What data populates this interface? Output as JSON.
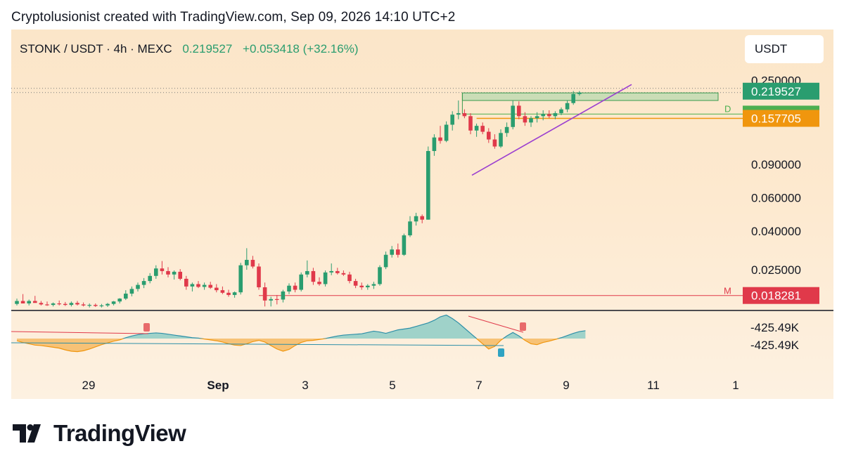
{
  "header": {
    "attribution": "Cryptolusionist created with TradingView.com, Sep 09, 2026 14:10 UTC+2"
  },
  "symbol": {
    "title": "STONK / USDT · 4h · MEXC",
    "price": "0.219527",
    "change": "+0.053418 (+32.16%)",
    "currency": "USDT"
  },
  "colors": {
    "up": "#2a9d6f",
    "down": "#e0394a",
    "accent_orange": "#f0960e",
    "trend_purple": "#9b3fd0",
    "osc_fill": "#7fc8c3"
  },
  "chart_data": {
    "type": "candlestick",
    "y_scale": "log",
    "ylim": [
      0.0155,
      0.26
    ],
    "y_ticks": [
      "0.250000",
      "0.090000",
      "0.060000",
      "0.040000",
      "0.025000"
    ],
    "x_ticks": [
      "29",
      "Sep",
      "3",
      "5",
      "7",
      "9",
      "11",
      "1"
    ],
    "price_tags": [
      {
        "label": "0.219527",
        "value": 0.219527,
        "color": "#2a9d6f"
      },
      {
        "label": "0.166109",
        "value": 0.166109,
        "color": "#4caf50"
      },
      {
        "label": "0.157705",
        "value": 0.157705,
        "color": "#f0960e"
      },
      {
        "label": "0.018281",
        "value": 0.018281,
        "color": "#e0394a"
      }
    ],
    "levels": [
      {
        "label": "D",
        "value": 0.166109
      },
      {
        "label": "M",
        "value": 0.018281
      }
    ],
    "candles": [
      [
        0.0165,
        0.0176,
        0.0162,
        0.0171
      ],
      [
        0.0171,
        0.0186,
        0.0166,
        0.0166
      ],
      [
        0.0166,
        0.0174,
        0.0162,
        0.0171
      ],
      [
        0.0171,
        0.0182,
        0.0168,
        0.0167
      ],
      [
        0.0167,
        0.0171,
        0.0162,
        0.0164
      ],
      [
        0.0164,
        0.017,
        0.0161,
        0.0163
      ],
      [
        0.0163,
        0.0168,
        0.016,
        0.0166
      ],
      [
        0.0166,
        0.0172,
        0.0162,
        0.0165
      ],
      [
        0.0165,
        0.0169,
        0.0161,
        0.0163
      ],
      [
        0.0163,
        0.017,
        0.016,
        0.0167
      ],
      [
        0.0167,
        0.0171,
        0.0162,
        0.0164
      ],
      [
        0.0164,
        0.0168,
        0.016,
        0.0162
      ],
      [
        0.0162,
        0.0166,
        0.0158,
        0.0163
      ],
      [
        0.0163,
        0.0166,
        0.0159,
        0.0161
      ],
      [
        0.0161,
        0.0165,
        0.0158,
        0.0162
      ],
      [
        0.0162,
        0.0167,
        0.0159,
        0.0165
      ],
      [
        0.0165,
        0.0171,
        0.0162,
        0.017
      ],
      [
        0.017,
        0.0177,
        0.0166,
        0.0176
      ],
      [
        0.0176,
        0.0195,
        0.0173,
        0.0187
      ],
      [
        0.0187,
        0.0204,
        0.0181,
        0.0198
      ],
      [
        0.0198,
        0.0214,
        0.0192,
        0.0208
      ],
      [
        0.0208,
        0.0226,
        0.02,
        0.0218
      ],
      [
        0.0218,
        0.024,
        0.0212,
        0.0232
      ],
      [
        0.0232,
        0.0264,
        0.0224,
        0.0254
      ],
      [
        0.0254,
        0.0278,
        0.0236,
        0.0246
      ],
      [
        0.0246,
        0.0258,
        0.0228,
        0.0236
      ],
      [
        0.0236,
        0.0248,
        0.0222,
        0.0244
      ],
      [
        0.0244,
        0.0252,
        0.022,
        0.0224
      ],
      [
        0.0224,
        0.0232,
        0.0196,
        0.0204
      ],
      [
        0.0204,
        0.0214,
        0.0192,
        0.021
      ],
      [
        0.021,
        0.0218,
        0.02,
        0.0203
      ],
      [
        0.0203,
        0.0214,
        0.0196,
        0.0208
      ],
      [
        0.0208,
        0.0216,
        0.0198,
        0.0201
      ],
      [
        0.0201,
        0.021,
        0.019,
        0.0195
      ],
      [
        0.0195,
        0.0204,
        0.0186,
        0.0189
      ],
      [
        0.0189,
        0.0196,
        0.018,
        0.0184
      ],
      [
        0.0184,
        0.0192,
        0.0178,
        0.019
      ],
      [
        0.019,
        0.0272,
        0.0185,
        0.0264
      ],
      [
        0.0264,
        0.0325,
        0.025,
        0.0282
      ],
      [
        0.0282,
        0.0296,
        0.0254,
        0.026
      ],
      [
        0.026,
        0.027,
        0.0196,
        0.0202
      ],
      [
        0.0202,
        0.0214,
        0.016,
        0.0172
      ],
      [
        0.0172,
        0.018,
        0.016,
        0.0175
      ],
      [
        0.0175,
        0.0184,
        0.0164,
        0.0174
      ],
      [
        0.0174,
        0.0196,
        0.0168,
        0.0192
      ],
      [
        0.0192,
        0.0212,
        0.0186,
        0.0206
      ],
      [
        0.0206,
        0.0214,
        0.019,
        0.0196
      ],
      [
        0.0196,
        0.0242,
        0.0192,
        0.0236
      ],
      [
        0.0236,
        0.028,
        0.0228,
        0.0246
      ],
      [
        0.0246,
        0.0256,
        0.0208,
        0.0216
      ],
      [
        0.0216,
        0.0228,
        0.0206,
        0.021
      ],
      [
        0.021,
        0.0248,
        0.0204,
        0.0242
      ],
      [
        0.0242,
        0.027,
        0.0234,
        0.0246
      ],
      [
        0.0246,
        0.0256,
        0.0236,
        0.024
      ],
      [
        0.024,
        0.0248,
        0.0232,
        0.0236
      ],
      [
        0.0236,
        0.0244,
        0.0212,
        0.0218
      ],
      [
        0.0218,
        0.0224,
        0.02,
        0.0206
      ],
      [
        0.0206,
        0.0214,
        0.0196,
        0.0202
      ],
      [
        0.0202,
        0.021,
        0.0196,
        0.0206
      ],
      [
        0.0206,
        0.0216,
        0.0198,
        0.021
      ],
      [
        0.021,
        0.0264,
        0.0206,
        0.0258
      ],
      [
        0.0258,
        0.0312,
        0.0252,
        0.03
      ],
      [
        0.03,
        0.0334,
        0.029,
        0.032
      ],
      [
        0.032,
        0.0344,
        0.029,
        0.03
      ],
      [
        0.03,
        0.0388,
        0.0296,
        0.038
      ],
      [
        0.038,
        0.048,
        0.0372,
        0.045
      ],
      [
        0.045,
        0.05,
        0.0428,
        0.048
      ],
      [
        0.048,
        0.049,
        0.044,
        0.046
      ],
      [
        0.046,
        0.112,
        0.046,
        0.106
      ],
      [
        0.106,
        0.13,
        0.1,
        0.125
      ],
      [
        0.125,
        0.144,
        0.116,
        0.12
      ],
      [
        0.12,
        0.152,
        0.118,
        0.146
      ],
      [
        0.146,
        0.172,
        0.136,
        0.165
      ],
      [
        0.165,
        0.196,
        0.156,
        0.168
      ],
      [
        0.168,
        0.176,
        0.158,
        0.162
      ],
      [
        0.162,
        0.168,
        0.13,
        0.136
      ],
      [
        0.136,
        0.148,
        0.126,
        0.144
      ],
      [
        0.144,
        0.15,
        0.13,
        0.134
      ],
      [
        0.134,
        0.14,
        0.117,
        0.122
      ],
      [
        0.122,
        0.13,
        0.109,
        0.112
      ],
      [
        0.112,
        0.138,
        0.11,
        0.132
      ],
      [
        0.132,
        0.15,
        0.126,
        0.142
      ],
      [
        0.142,
        0.196,
        0.138,
        0.184
      ],
      [
        0.184,
        0.194,
        0.156,
        0.162
      ],
      [
        0.162,
        0.17,
        0.144,
        0.15
      ],
      [
        0.15,
        0.162,
        0.142,
        0.158
      ],
      [
        0.158,
        0.17,
        0.15,
        0.162
      ],
      [
        0.162,
        0.174,
        0.154,
        0.166
      ],
      [
        0.166,
        0.174,
        0.158,
        0.162
      ],
      [
        0.162,
        0.172,
        0.156,
        0.168
      ],
      [
        0.168,
        0.18,
        0.164,
        0.176
      ],
      [
        0.176,
        0.196,
        0.17,
        0.19
      ],
      [
        0.19,
        0.22,
        0.186,
        0.212
      ],
      [
        0.212,
        0.22,
        0.208,
        0.216
      ]
    ],
    "oscillator": {
      "labels": [
        "-425.49K",
        "-425.49K"
      ],
      "values": [
        -0.5,
        -0.9,
        -1.2,
        -1.5,
        -1.6,
        -1.8,
        -2.0,
        -2.2,
        -2.6,
        -2.9,
        -3.0,
        -2.8,
        -2.4,
        -1.9,
        -1.4,
        -1.0,
        -0.6,
        -0.3,
        0.2,
        0.6,
        0.9,
        1.1,
        1.2,
        1.3,
        1.2,
        1.0,
        0.8,
        0.6,
        0.4,
        0.2,
        0.1,
        -0.1,
        -0.3,
        -0.5,
        -0.8,
        -1.2,
        -1.5,
        -1.6,
        -1.2,
        -0.7,
        -0.4,
        -0.8,
        -1.6,
        -2.4,
        -2.9,
        -2.5,
        -1.6,
        -0.9,
        -0.5,
        -0.4,
        -0.2,
        0.0,
        0.3,
        0.6,
        0.8,
        0.9,
        1.0,
        1.1,
        1.4,
        1.7,
        1.5,
        1.2,
        1.6,
        2.0,
        2.2,
        2.4,
        2.8,
        3.2,
        3.6,
        4.2,
        5.0,
        5.4,
        4.6,
        3.6,
        2.4,
        1.2,
        0.0,
        -1.2,
        -2.4,
        -1.8,
        -0.4,
        0.6,
        1.4,
        0.6,
        -0.4,
        -1.2,
        -1.4,
        -0.9,
        -0.6,
        -0.2,
        0.2,
        0.7,
        1.2,
        1.6,
        1.8
      ]
    }
  }
}
